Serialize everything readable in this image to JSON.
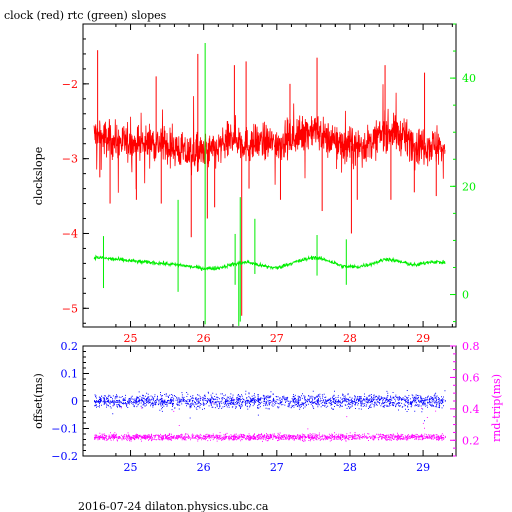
{
  "title": "clock (red) rtc (green) slopes",
  "footer": "2016-07-24  dilaton.physics.ubc.ca",
  "colors": {
    "clock": "#ff0000",
    "rtc": "#00ee00",
    "offset": "#0000ff",
    "roundtrip": "#ff00ff",
    "axis_frame": "#000000"
  },
  "chart_data": [
    {
      "type": "line",
      "title": "clock (red) rtc (green) slopes",
      "xlabel": "",
      "ylabel": "clockslope",
      "y2label": "",
      "xlim": [
        24.35,
        29.45
      ],
      "ylim": [
        -5.25,
        -1.2
      ],
      "y2lim": [
        -6,
        50
      ],
      "xticks": [
        25,
        26,
        27,
        28,
        29
      ],
      "yticks": [
        -5,
        -4,
        -3,
        -2
      ],
      "y2ticks": [
        0,
        20,
        40
      ],
      "grid": false,
      "series": [
        {
          "name": "clock",
          "axis": "left",
          "color": "#ff0000",
          "description_values": {
            "x_start": 24.5,
            "x_end": 29.3,
            "mean": [
              [
                24.5,
                -2.68
              ],
              [
                24.7,
                -2.75
              ],
              [
                25.0,
                -2.8
              ],
              [
                25.3,
                -2.78
              ],
              [
                25.6,
                -2.85
              ],
              [
                25.8,
                -2.95
              ],
              [
                26.0,
                -2.92
              ],
              [
                26.2,
                -2.88
              ],
              [
                26.4,
                -2.7
              ],
              [
                26.6,
                -2.82
              ],
              [
                26.8,
                -2.78
              ],
              [
                27.0,
                -2.8
              ],
              [
                27.3,
                -2.7
              ],
              [
                27.5,
                -2.6
              ],
              [
                27.7,
                -2.75
              ],
              [
                27.9,
                -2.8
              ],
              [
                28.1,
                -2.85
              ],
              [
                28.3,
                -2.78
              ],
              [
                28.5,
                -2.62
              ],
              [
                28.7,
                -2.7
              ],
              [
                28.9,
                -2.8
              ],
              [
                29.1,
                -2.82
              ],
              [
                29.3,
                -2.86
              ]
            ],
            "spread": 0.32,
            "spikes": [
              [
                24.55,
                -1.55
              ],
              [
                24.58,
                -3.25
              ],
              [
                24.72,
                -3.6
              ],
              [
                25.08,
                -3.55
              ],
              [
                25.35,
                -1.9
              ],
              [
                25.42,
                -3.6
              ],
              [
                25.83,
                -4.05
              ],
              [
                25.92,
                -1.6
              ],
              [
                26.05,
                -3.8
              ],
              [
                26.15,
                -3.65
              ],
              [
                26.42,
                -1.75
              ],
              [
                26.52,
                -5.1
              ],
              [
                26.58,
                -1.7
              ],
              [
                26.62,
                -3.4
              ],
              [
                27.05,
                -3.55
              ],
              [
                27.18,
                -2.0
              ],
              [
                27.55,
                -1.65
              ],
              [
                27.62,
                -3.7
              ],
              [
                28.02,
                -4.0
              ],
              [
                28.1,
                -3.55
              ],
              [
                28.48,
                -1.75
              ],
              [
                28.56,
                -3.55
              ],
              [
                28.88,
                -3.45
              ],
              [
                29.02,
                -1.85
              ],
              [
                29.18,
                -3.5
              ]
            ]
          }
        },
        {
          "name": "rtc",
          "axis": "right",
          "color": "#00ee00",
          "description_values": {
            "x_start": 24.5,
            "x_end": 29.3,
            "mean": [
              [
                24.5,
                6.9
              ],
              [
                24.8,
                6.5
              ],
              [
                25.1,
                6.1
              ],
              [
                25.4,
                5.8
              ],
              [
                25.7,
                5.4
              ],
              [
                26.0,
                4.8
              ],
              [
                26.2,
                4.9
              ],
              [
                26.4,
                5.6
              ],
              [
                26.6,
                6.0
              ],
              [
                26.8,
                5.3
              ],
              [
                27.0,
                4.9
              ],
              [
                27.2,
                5.8
              ],
              [
                27.5,
                6.9
              ],
              [
                27.7,
                6.3
              ],
              [
                27.9,
                5.2
              ],
              [
                28.1,
                5.1
              ],
              [
                28.3,
                5.7
              ],
              [
                28.5,
                6.6
              ],
              [
                28.7,
                6.0
              ],
              [
                28.9,
                5.4
              ],
              [
                29.1,
                6.1
              ],
              [
                29.3,
                5.9
              ]
            ],
            "spikes": [
              [
                24.63,
                10.8
              ],
              [
                24.63,
                1.2
              ],
              [
                25.65,
                17.5
              ],
              [
                25.65,
                0.5
              ],
              [
                26.02,
                46.5
              ],
              [
                26.02,
                -5.5
              ],
              [
                26.43,
                11.2
              ],
              [
                26.43,
                1.8
              ],
              [
                26.48,
                -5.8
              ],
              [
                26.5,
                18.0
              ],
              [
                26.5,
                -5.0
              ],
              [
                26.7,
                14.0
              ],
              [
                26.7,
                3.8
              ],
              [
                27.55,
                11.0
              ],
              [
                27.55,
                3.5
              ],
              [
                27.95,
                10.2
              ],
              [
                27.95,
                1.8
              ]
            ]
          }
        }
      ]
    },
    {
      "type": "scatter",
      "xlabel": "",
      "ylabel": "offset(ms)",
      "y2label": "rnd-trip(ms)",
      "xlim": [
        24.35,
        29.45
      ],
      "ylim": [
        -0.2,
        0.2
      ],
      "y2lim": [
        0.1,
        0.8
      ],
      "xticks": [
        25,
        26,
        27,
        28,
        29
      ],
      "yticks": [
        -0.2,
        -0.1,
        0,
        0.1,
        0.2
      ],
      "y2ticks": [
        0.2,
        0.4,
        0.6,
        0.8
      ],
      "grid": false,
      "series": [
        {
          "name": "offset",
          "axis": "left",
          "color": "#0000ff",
          "description_values": {
            "x_start": 24.5,
            "x_end": 29.3,
            "center": 0.0,
            "band_half_width": 0.045,
            "outlier_min": -0.12,
            "outlier_max": 0.12
          }
        },
        {
          "name": "rnd-trip",
          "axis": "right",
          "color": "#ff00ff",
          "description_values": {
            "x_start": 24.5,
            "x_end": 29.3,
            "center": 0.22,
            "band_half_width": 0.035,
            "outlier_max": 0.7
          }
        }
      ]
    }
  ]
}
